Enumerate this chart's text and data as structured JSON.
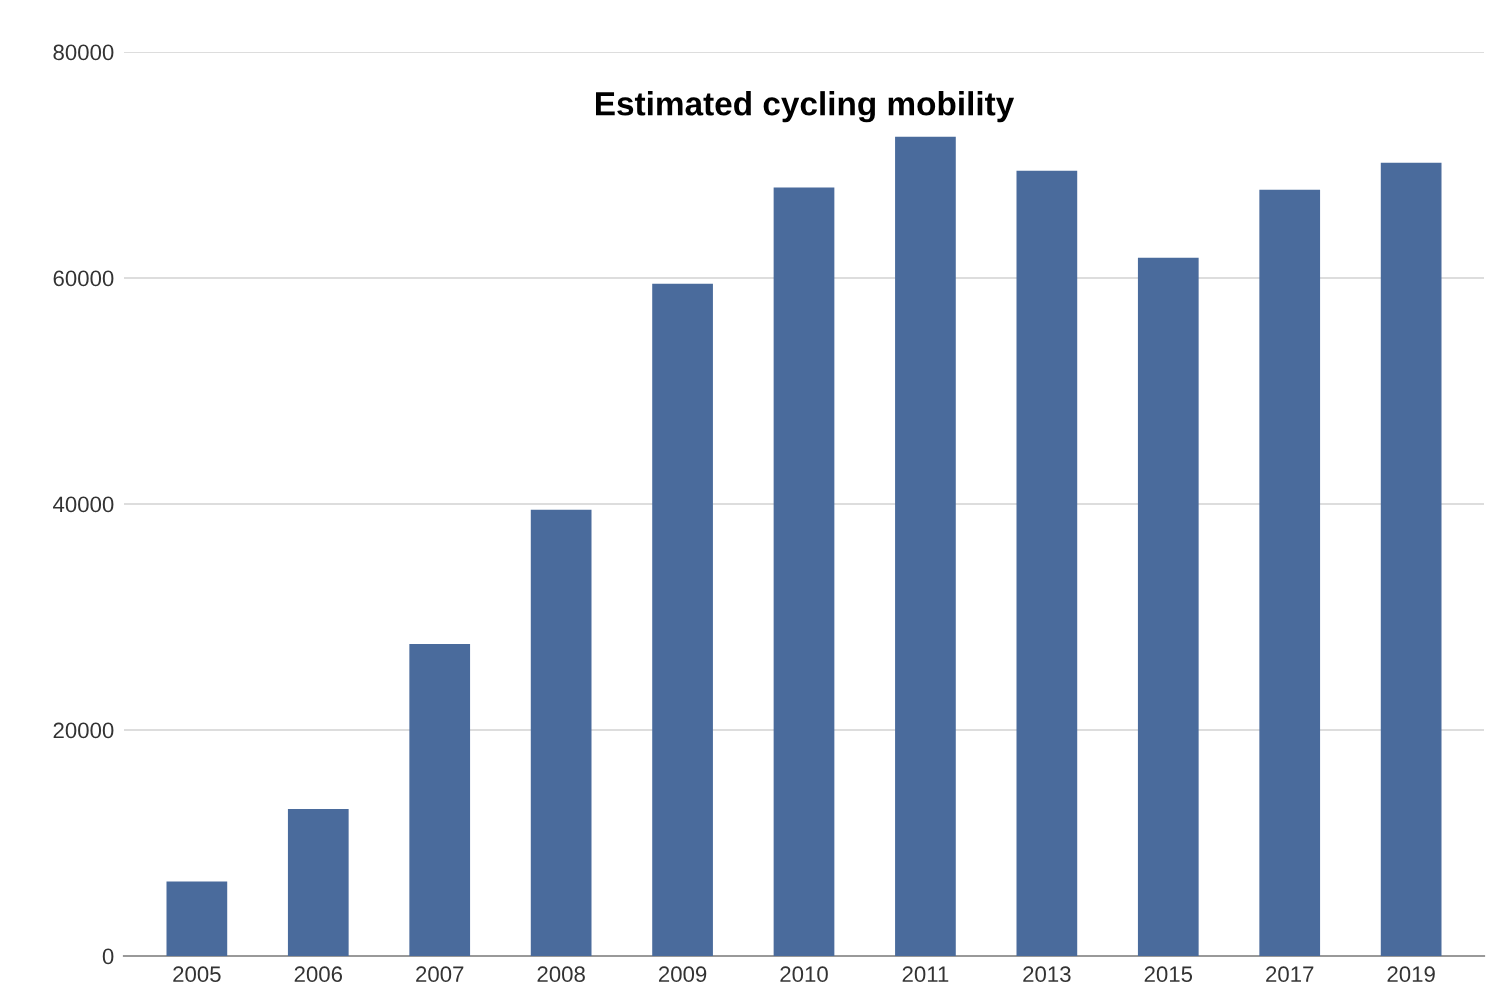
{
  "chart_data": {
    "type": "bar",
    "title": "Estimated cycling mobility",
    "categories": [
      "2005",
      "2006",
      "2007",
      "2008",
      "2009",
      "2010",
      "2011",
      "2013",
      "2015",
      "2017",
      "2019"
    ],
    "values": [
      6600,
      13000,
      27600,
      39500,
      59500,
      68000,
      72500,
      69500,
      61800,
      67800,
      70200
    ],
    "color": "#4a6b9c",
    "ylim": [
      0,
      80000
    ],
    "yticks": [
      0,
      20000,
      40000,
      60000,
      80000
    ],
    "grid": "y",
    "legend": false
  }
}
